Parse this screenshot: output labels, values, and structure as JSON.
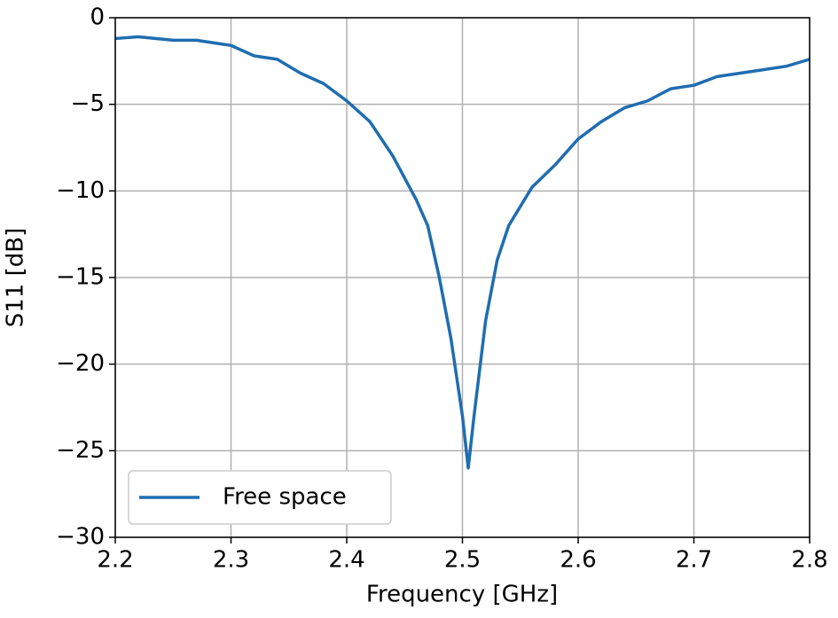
{
  "chart_data": {
    "type": "line",
    "xlabel": "Frequency [GHz]",
    "ylabel": "S11 [dB]",
    "x": [
      2.2,
      2.22,
      2.25,
      2.27,
      2.3,
      2.32,
      2.34,
      2.36,
      2.38,
      2.4,
      2.42,
      2.44,
      2.46,
      2.47,
      2.48,
      2.49,
      2.5,
      2.505,
      2.51,
      2.52,
      2.53,
      2.54,
      2.56,
      2.58,
      2.6,
      2.62,
      2.64,
      2.66,
      2.68,
      2.7,
      2.72,
      2.74,
      2.76,
      2.78,
      2.8
    ],
    "series": [
      {
        "name": "Free space",
        "color": "#1f6db0",
        "values": [
          -1.2,
          -1.1,
          -1.3,
          -1.3,
          -1.6,
          -2.2,
          -2.4,
          -3.2,
          -3.8,
          -4.8,
          -6.0,
          -8.0,
          -10.5,
          -12.0,
          -15.0,
          -18.5,
          -23.0,
          -26.0,
          -23.0,
          -17.5,
          -14.0,
          -12.0,
          -9.8,
          -8.5,
          -7.0,
          -6.0,
          -5.2,
          -4.8,
          -4.1,
          -3.9,
          -3.4,
          -3.2,
          -3.0,
          -2.8,
          -2.4
        ]
      }
    ],
    "xlim": [
      2.2,
      2.8
    ],
    "xticks": [
      2.2,
      2.3,
      2.4,
      2.5,
      2.6,
      2.7,
      2.8
    ],
    "ylim": [
      -30,
      0
    ],
    "yticks": [
      {
        "value": -30,
        "label": "−30"
      },
      {
        "value": -25,
        "label": "−25"
      },
      {
        "value": -20,
        "label": "−20"
      },
      {
        "value": -15,
        "label": "−15"
      },
      {
        "value": -10,
        "label": "−10"
      },
      {
        "value": -5,
        "label": "−5"
      },
      0
    ],
    "grid": true,
    "legend_loc": "lower left"
  }
}
